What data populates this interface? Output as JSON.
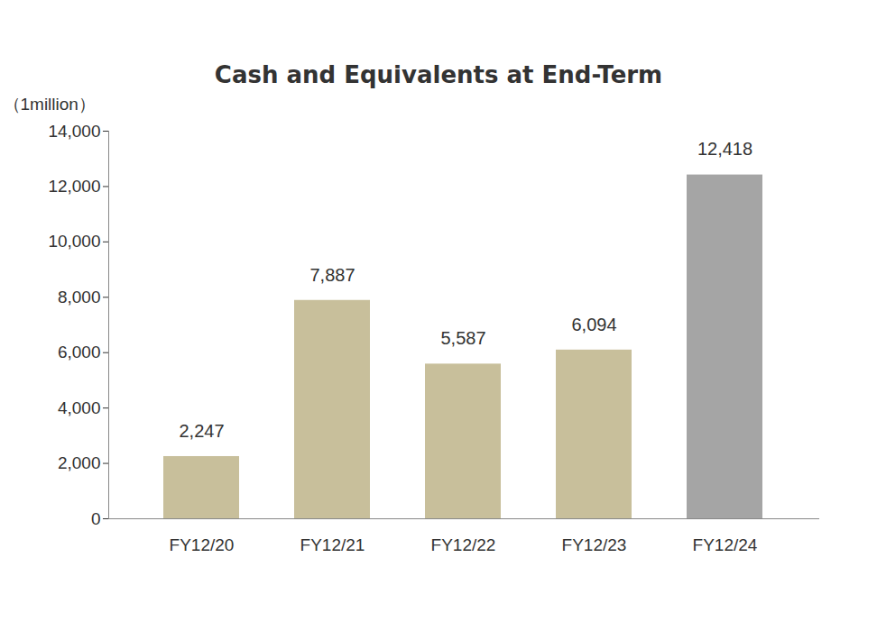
{
  "chart_data": {
    "type": "bar",
    "title": "Cash and Equivalents at End-Term",
    "y_label": "（1million）",
    "categories": [
      "FY12/20",
      "FY12/21",
      "FY12/22",
      "FY12/23",
      "FY12/24"
    ],
    "values": [
      2247,
      7887,
      5587,
      6094,
      12418
    ],
    "value_labels": [
      "2,247",
      "7,887",
      "5,587",
      "6,094",
      "12,418"
    ],
    "colors": [
      "#c8bf9b",
      "#c8bf9b",
      "#c8bf9b",
      "#c8bf9b",
      "#a5a5a5"
    ],
    "ylim": [
      0,
      14000
    ],
    "yticks": [
      0,
      {
        "value": 2000,
        "label": "2,000"
      },
      {
        "value": 4000,
        "label": "4,000"
      },
      {
        "value": 6000,
        "label": "6,000"
      },
      {
        "value": 8000,
        "label": "8,000"
      },
      {
        "value": 10000,
        "label": "10,000"
      },
      {
        "value": 12000,
        "label": "12,000"
      },
      {
        "value": 14000,
        "label": "14,000"
      }
    ],
    "grid": false,
    "data_labels": true
  }
}
